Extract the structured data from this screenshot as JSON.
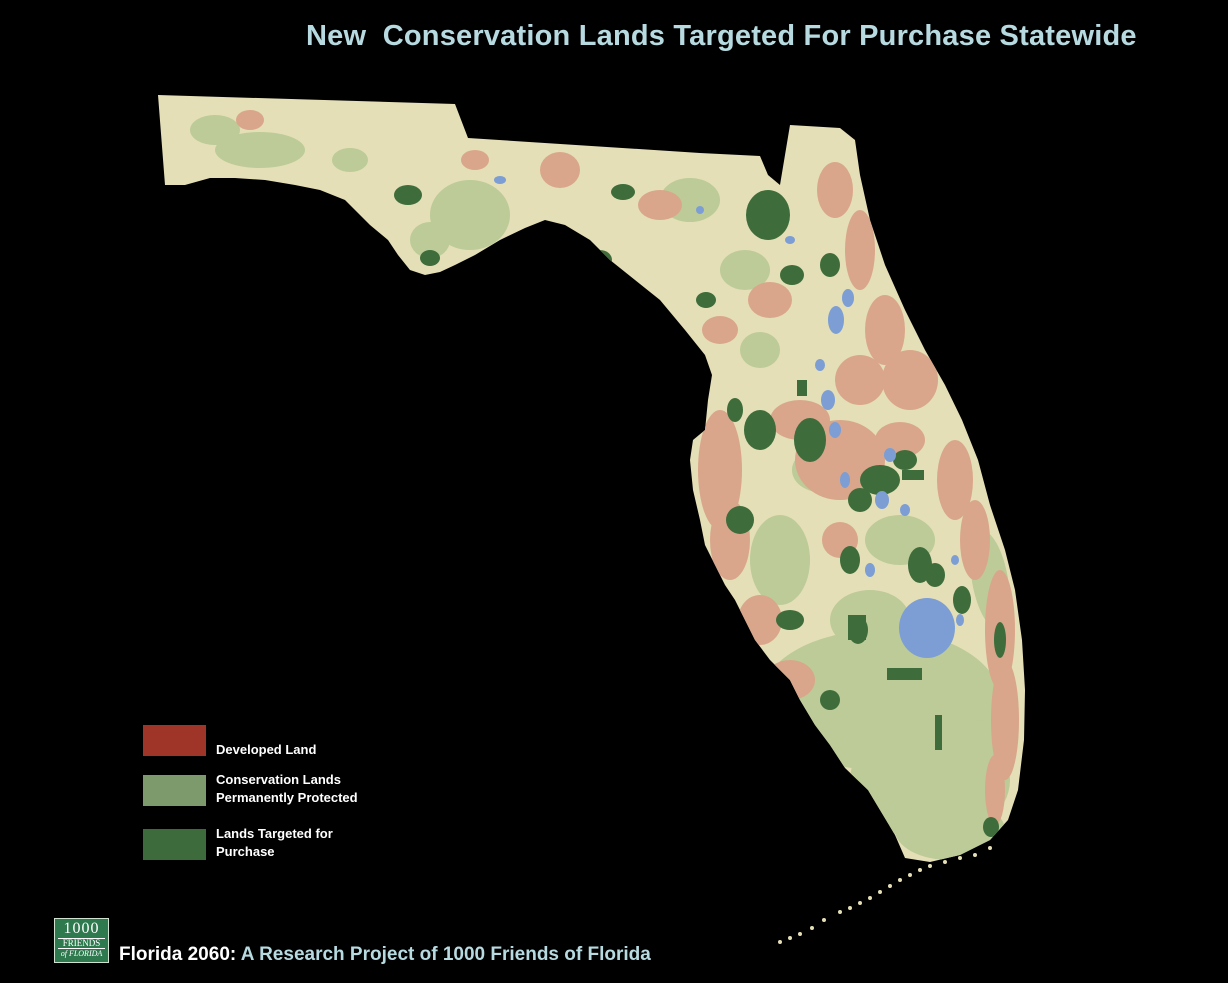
{
  "title": "New  Conservation Lands Targeted For Purchase Statewide",
  "legend": [
    {
      "label": "Developed Land",
      "color": "#9e3528"
    },
    {
      "label": "Conservation Lands\nPermanently Protected",
      "color": "#7d9a6c"
    },
    {
      "label": "Lands Targeted for\nPurchase",
      "color": "#3d6b3c"
    }
  ],
  "logo": {
    "line1": "1000",
    "line2": "FRIENDS",
    "line3": "of FLORIDA",
    "color": "#2e7a4e"
  },
  "footer": {
    "project": "Florida 2060:",
    "subtitle": " A Research Project of 1000 Friends of Florida"
  },
  "map": {
    "land_color": "#e4dfb6",
    "developed_color": "#d9a68b",
    "protected_color": "#bccb97",
    "targeted_color": "#3e6d3b",
    "water_color": "#7c9ed4"
  }
}
